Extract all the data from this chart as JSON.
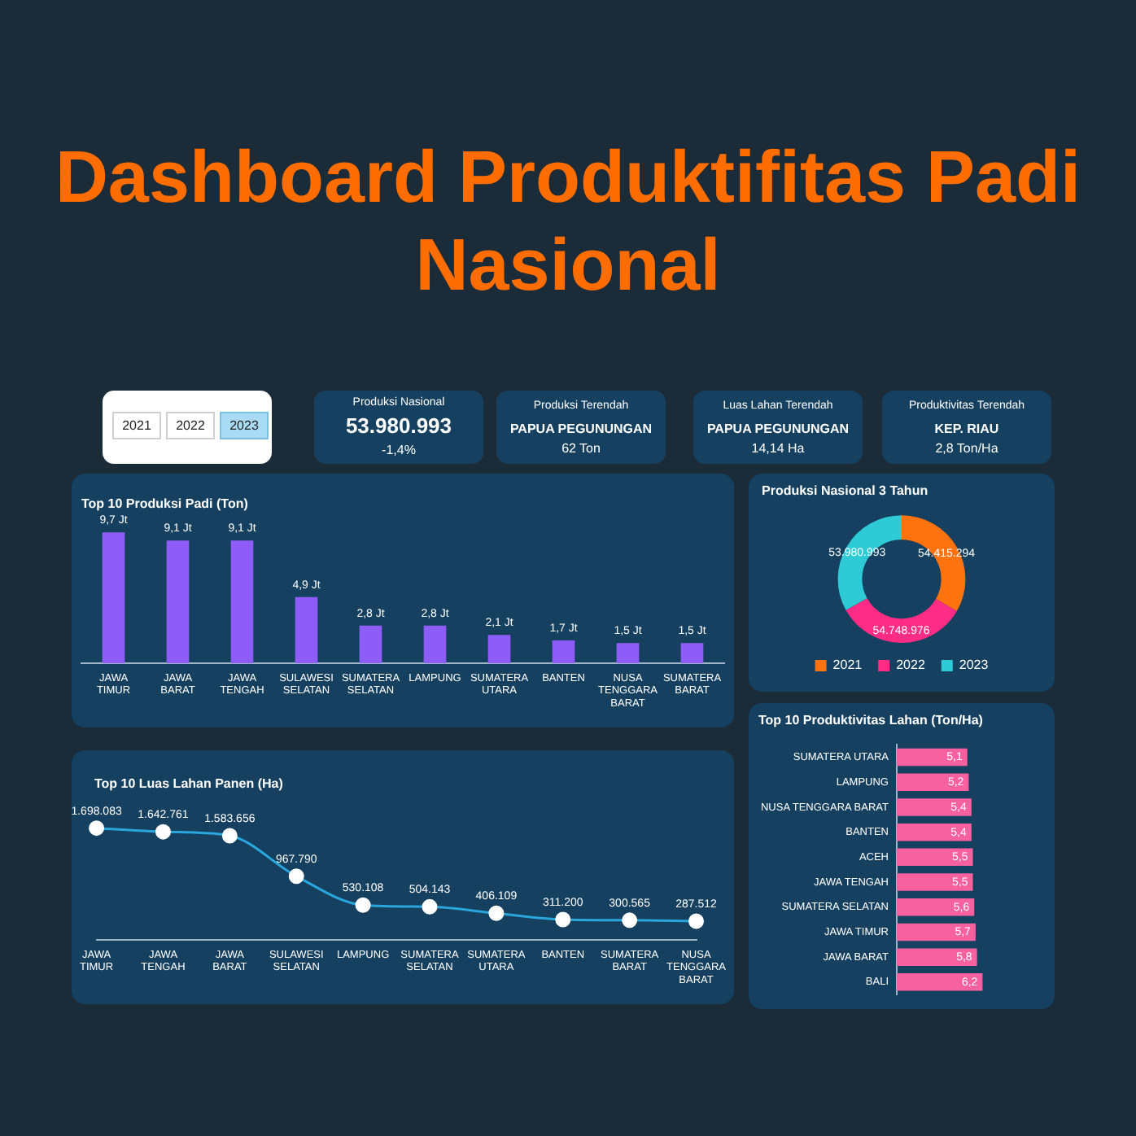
{
  "chart_data": [
    {
      "type": "other",
      "title": "Dashboard Produktifitas Padi Nasional",
      "annotations": [
        "2021",
        "2022",
        "2023",
        "Produksi Nasional",
        "53.980.993",
        "-1,4%",
        "Produksi Terendah",
        "PAPUA PEGUNUNGAN",
        "62 Ton",
        "Luas Lahan Terendah",
        "PAPUA PEGUNUNGAN",
        "14,14 Ha",
        "Produktivitas Terendah",
        "KEP. RIAU",
        "2,8 Ton/Ha"
      ]
    },
    {
      "type": "bar",
      "title": "Top 10 Produksi Padi (Ton)",
      "categories": [
        "JAWA TIMUR",
        "JAWA BARAT",
        "JAWA TENGAH",
        "SULAWESI SELATAN",
        "SUMATERA SELATAN",
        "LAMPUNG",
        "SUMATERA UTARA",
        "BANTEN",
        "NUSA TENGGARA BARAT",
        "SUMATERA BARAT"
      ],
      "values": [
        9.7,
        9.1,
        9.1,
        4.9,
        2.8,
        2.8,
        2.1,
        1.7,
        1.5,
        1.5
      ],
      "value_labels": [
        "9,7 Jt",
        "9,1 Jt",
        "9,1 Jt",
        "4,9 Jt",
        "2,8 Jt",
        "2,8 Jt",
        "2,1 Jt",
        "1,7 Jt",
        "1,5 Jt",
        "1,5 Jt"
      ],
      "color": "#8e5cf7"
    },
    {
      "type": "donut",
      "title": "Produksi Nasional 3 Tahun",
      "categories": [
        "2021",
        "2022",
        "2023"
      ],
      "values": [
        54415294,
        54748976,
        53980993
      ],
      "value_labels": [
        "54.415.294",
        "54.748.976",
        "53.980.993"
      ],
      "colors": [
        "#ff7210",
        "#ff2c86",
        "#2ecad6"
      ],
      "legend": "bottom"
    },
    {
      "type": "line",
      "title": "Top 10 Luas Lahan Panen (Ha)",
      "categories": [
        "JAWA TIMUR",
        "JAWA TENGAH",
        "JAWA BARAT",
        "SULAWESI SELATAN",
        "LAMPUNG",
        "SUMATERA SELATAN",
        "SUMATERA UTARA",
        "BANTEN",
        "SUMATERA BARAT",
        "NUSA TENGGARA BARAT"
      ],
      "values": [
        1698083,
        1642761,
        1583656,
        967790,
        530108,
        504143,
        406109,
        311200,
        300565,
        287512
      ],
      "value_labels": [
        "1.698.083",
        "1.642.761",
        "1.583.656",
        "967.790",
        "530.108",
        "504.143",
        "406.109",
        "311.200",
        "300.565",
        "287.512"
      ],
      "color": "#2aa6dc",
      "marker": "circle"
    },
    {
      "type": "bar",
      "orientation": "horizontal",
      "title": "Top 10 Produktivitas Lahan (Ton/Ha)",
      "categories": [
        "SUMATERA UTARA",
        "LAMPUNG",
        "NUSA TENGGARA BARAT",
        "BANTEN",
        "ACEH",
        "JAWA TENGAH",
        "SUMATERA SELATAN",
        "JAWA TIMUR",
        "JAWA BARAT",
        "BALI"
      ],
      "values": [
        5.1,
        5.2,
        5.4,
        5.4,
        5.5,
        5.5,
        5.6,
        5.7,
        5.8,
        6.2
      ],
      "value_labels": [
        "5,1",
        "5,2",
        "5,4",
        "5,4",
        "5,5",
        "5,5",
        "5,6",
        "5,7",
        "5,8",
        "6,2"
      ],
      "color": "#f7619f"
    }
  ]
}
